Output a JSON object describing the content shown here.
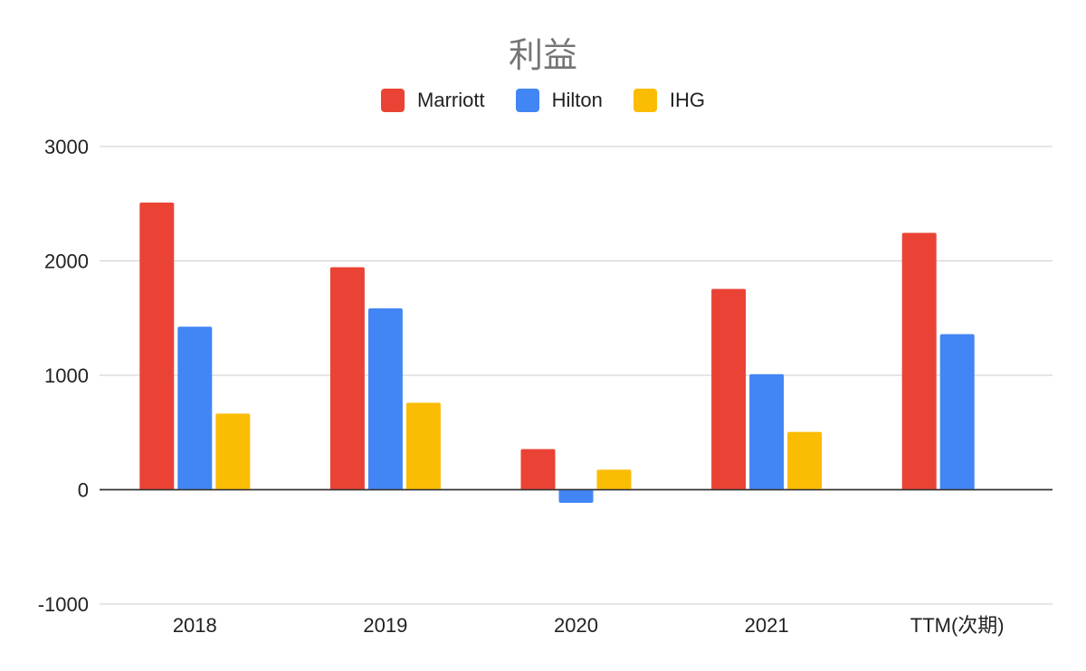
{
  "chart_data": {
    "type": "bar",
    "title": "利益",
    "xlabel": "",
    "ylabel": "",
    "ylim": [
      -1000,
      3000
    ],
    "yticks": [
      -1000,
      0,
      1000,
      2000,
      3000
    ],
    "yticks_labels": [
      "-1000",
      "0",
      "1000",
      "2000",
      "3000"
    ],
    "grid": true,
    "legend_position": "top",
    "categories": [
      "2018",
      "2019",
      "2020",
      "2021",
      "TTM(次期)"
    ],
    "series": [
      {
        "name": "Marriott",
        "color": "#ea4335",
        "values": [
          2510,
          1945,
          355,
          1755,
          2245
        ]
      },
      {
        "name": "Hilton",
        "color": "#4285f4",
        "values": [
          1425,
          1585,
          -115,
          1010,
          1360
        ]
      },
      {
        "name": "IHG",
        "color": "#fbbc04",
        "values": [
          665,
          760,
          175,
          505,
          null
        ]
      }
    ]
  }
}
